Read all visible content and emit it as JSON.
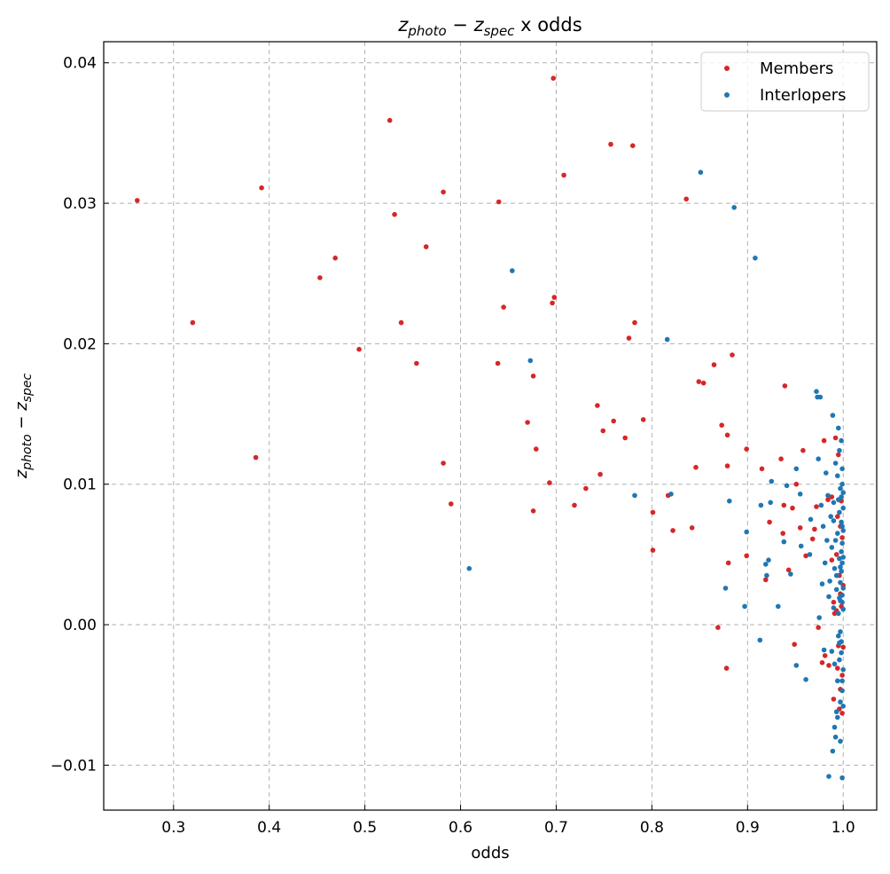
{
  "chart_data": {
    "type": "scatter",
    "title_parts": {
      "z": "z",
      "photo": "photo",
      "minus": " − ",
      "spec": "spec",
      "suffix": " x odds"
    },
    "xlabel": "odds",
    "ylabel_parts": {
      "z": "z",
      "photo": "photo",
      "minus": " − ",
      "spec": "spec"
    },
    "xlim": [
      0.227,
      1.035
    ],
    "ylim": [
      -0.0132,
      0.0415
    ],
    "xticks": [
      0.3,
      0.4,
      0.5,
      0.6,
      0.7,
      0.8,
      0.9,
      1.0
    ],
    "xtick_labels": [
      "0.3",
      "0.4",
      "0.5",
      "0.6",
      "0.7",
      "0.8",
      "0.9",
      "1.0"
    ],
    "yticks": [
      -0.01,
      0.0,
      0.01,
      0.02,
      0.03,
      0.04
    ],
    "ytick_labels": [
      "−0.01",
      "0.00",
      "0.01",
      "0.02",
      "0.03",
      "0.04"
    ],
    "grid": true,
    "legend_position": "top-right",
    "series": [
      {
        "name": "Members",
        "color": "#d62728",
        "points": [
          [
            0.262,
            0.0302
          ],
          [
            0.32,
            0.0215
          ],
          [
            0.386,
            0.0119
          ],
          [
            0.392,
            0.0311
          ],
          [
            0.453,
            0.0247
          ],
          [
            0.469,
            0.0261
          ],
          [
            0.494,
            0.0196
          ],
          [
            0.526,
            0.0359
          ],
          [
            0.531,
            0.0292
          ],
          [
            0.538,
            0.0215
          ],
          [
            0.554,
            0.0186
          ],
          [
            0.564,
            0.0269
          ],
          [
            0.582,
            0.0308
          ],
          [
            0.582,
            0.0115
          ],
          [
            0.59,
            0.0086
          ],
          [
            0.64,
            0.0301
          ],
          [
            0.639,
            0.0186
          ],
          [
            0.645,
            0.0226
          ],
          [
            0.67,
            0.0144
          ],
          [
            0.676,
            0.0177
          ],
          [
            0.676,
            0.0081
          ],
          [
            0.679,
            0.0125
          ],
          [
            0.693,
            0.0101
          ],
          [
            0.697,
            0.0389
          ],
          [
            0.696,
            0.0229
          ],
          [
            0.698,
            0.0233
          ],
          [
            0.708,
            0.032
          ],
          [
            0.719,
            0.0085
          ],
          [
            0.731,
            0.0097
          ],
          [
            0.743,
            0.0156
          ],
          [
            0.746,
            0.0107
          ],
          [
            0.749,
            0.0138
          ],
          [
            0.757,
            0.0342
          ],
          [
            0.76,
            0.0145
          ],
          [
            0.772,
            0.0133
          ],
          [
            0.776,
            0.0204
          ],
          [
            0.78,
            0.0341
          ],
          [
            0.782,
            0.0215
          ],
          [
            0.791,
            0.0146
          ],
          [
            0.801,
            0.008
          ],
          [
            0.801,
            0.0053
          ],
          [
            0.817,
            0.0092
          ],
          [
            0.822,
            0.0067
          ],
          [
            0.836,
            0.0303
          ],
          [
            0.842,
            0.0069
          ],
          [
            0.846,
            0.0112
          ],
          [
            0.849,
            0.0173
          ],
          [
            0.854,
            0.0172
          ],
          [
            0.865,
            0.0185
          ],
          [
            0.869,
            -0.0002
          ],
          [
            0.873,
            0.0142
          ],
          [
            0.878,
            -0.0031
          ],
          [
            0.879,
            0.0113
          ],
          [
            0.879,
            0.0135
          ],
          [
            0.88,
            0.0044
          ],
          [
            0.884,
            0.0192
          ],
          [
            0.899,
            0.0125
          ],
          [
            0.899,
            0.0049
          ],
          [
            0.915,
            0.0111
          ],
          [
            0.919,
            0.0032
          ],
          [
            0.923,
            0.0073
          ],
          [
            0.935,
            0.0118
          ],
          [
            0.937,
            0.0065
          ],
          [
            0.938,
            0.0085
          ],
          [
            0.939,
            0.017
          ],
          [
            0.943,
            0.0039
          ],
          [
            0.947,
            0.0083
          ],
          [
            0.949,
            -0.0014
          ],
          [
            0.951,
            0.01
          ],
          [
            0.955,
            0.0069
          ],
          [
            0.958,
            0.0124
          ],
          [
            0.961,
            0.0049
          ],
          [
            0.968,
            0.0061
          ],
          [
            0.97,
            0.0068
          ],
          [
            0.972,
            0.0084
          ],
          [
            0.974,
            -0.0002
          ],
          [
            0.978,
            -0.0027
          ],
          [
            0.98,
            0.0131
          ],
          [
            0.981,
            -0.0022
          ],
          [
            0.984,
            0.0089
          ],
          [
            0.985,
            -0.0029
          ],
          [
            0.988,
            0.0091
          ],
          [
            0.988,
            0.0046
          ],
          [
            0.99,
            0.0016
          ],
          [
            0.99,
            -0.0053
          ],
          [
            0.991,
            0.0008
          ],
          [
            0.992,
            0.0133
          ],
          [
            0.993,
            0.001
          ],
          [
            0.994,
            0.0077
          ],
          [
            0.994,
            -0.0031
          ],
          [
            0.995,
            0.0121
          ],
          [
            0.996,
            0.0035
          ],
          [
            0.996,
            -0.006
          ],
          [
            0.997,
            0.0022
          ],
          [
            0.997,
            -0.0046
          ],
          [
            0.998,
            0.0088
          ],
          [
            0.998,
            0.0013
          ],
          [
            0.999,
            -0.0036
          ],
          [
            0.999,
            0.0062
          ],
          [
            1.0,
            -0.0016
          ],
          [
            1.0,
            0.0028
          ],
          [
            0.993,
            0.005
          ],
          [
            0.995,
            -0.0015
          ],
          [
            0.997,
            0.007
          ],
          [
            0.999,
            -0.0063
          ]
        ]
      },
      {
        "name": "Interlopers",
        "color": "#1f77b4",
        "points": [
          [
            0.609,
            0.004
          ],
          [
            0.654,
            0.0252
          ],
          [
            0.673,
            0.0188
          ],
          [
            0.782,
            0.0092
          ],
          [
            0.816,
            0.0203
          ],
          [
            0.82,
            0.0093
          ],
          [
            0.851,
            0.0322
          ],
          [
            0.877,
            0.0026
          ],
          [
            0.881,
            0.0088
          ],
          [
            0.886,
            0.0297
          ],
          [
            0.897,
            0.0013
          ],
          [
            0.899,
            0.0066
          ],
          [
            0.908,
            0.0261
          ],
          [
            0.913,
            -0.0011
          ],
          [
            0.914,
            0.0085
          ],
          [
            0.919,
            0.0043
          ],
          [
            0.92,
            0.0035
          ],
          [
            0.922,
            0.0046
          ],
          [
            0.924,
            0.0087
          ],
          [
            0.925,
            0.0102
          ],
          [
            0.932,
            0.0013
          ],
          [
            0.938,
            0.0059
          ],
          [
            0.941,
            0.0099
          ],
          [
            0.945,
            0.0036
          ],
          [
            0.951,
            0.0111
          ],
          [
            0.951,
            -0.0029
          ],
          [
            0.955,
            0.0093
          ],
          [
            0.956,
            0.0056
          ],
          [
            0.961,
            -0.0039
          ],
          [
            0.965,
            0.005
          ],
          [
            0.966,
            0.0075
          ],
          [
            0.972,
            0.0166
          ],
          [
            0.973,
            0.0162
          ],
          [
            0.974,
            0.0118
          ],
          [
            0.975,
            0.0005
          ],
          [
            0.976,
            0.0162
          ],
          [
            0.977,
            0.0085
          ],
          [
            0.978,
            0.0029
          ],
          [
            0.979,
            0.007
          ],
          [
            0.98,
            -0.0018
          ],
          [
            0.981,
            0.0044
          ],
          [
            0.982,
            0.0108
          ],
          [
            0.983,
            0.006
          ],
          [
            0.984,
            0.0092
          ],
          [
            0.985,
            0.002
          ],
          [
            0.985,
            -0.0108
          ],
          [
            0.986,
            0.0031
          ],
          [
            0.987,
            0.0077
          ],
          [
            0.988,
            -0.0019
          ],
          [
            0.988,
            0.0055
          ],
          [
            0.989,
            0.0149
          ],
          [
            0.989,
            -0.009
          ],
          [
            0.99,
            0.0012
          ],
          [
            0.99,
            0.0087
          ],
          [
            0.991,
            -0.0073
          ],
          [
            0.991,
            0.004
          ],
          [
            0.992,
            -0.008
          ],
          [
            0.992,
            0.0115
          ],
          [
            0.993,
            0.0025
          ],
          [
            0.993,
            -0.0062
          ],
          [
            0.994,
            0.0106
          ],
          [
            0.994,
            -0.004
          ],
          [
            0.994,
            0.0065
          ],
          [
            0.995,
            -0.0008
          ],
          [
            0.995,
            0.014
          ],
          [
            0.995,
            0.0089
          ],
          [
            0.996,
            -0.0025
          ],
          [
            0.996,
            0.0047
          ],
          [
            0.996,
            0.0124
          ],
          [
            0.997,
            -0.0055
          ],
          [
            0.997,
            0.0097
          ],
          [
            0.997,
            0.0017
          ],
          [
            0.997,
            -0.0083
          ],
          [
            0.998,
            0.0073
          ],
          [
            0.998,
            0.0131
          ],
          [
            0.998,
            -0.0012
          ],
          [
            0.998,
            0.0038
          ],
          [
            0.999,
            0.01
          ],
          [
            0.999,
            -0.0047
          ],
          [
            0.999,
            0.0058
          ],
          [
            0.999,
            0.0021
          ],
          [
            0.999,
            -0.0109
          ],
          [
            1.0,
            0.0083
          ],
          [
            1.0,
            -0.0032
          ],
          [
            1.0,
            0.0011
          ],
          [
            1.0,
            0.0067
          ],
          [
            1.0,
            -0.0058
          ],
          [
            1.0,
            0.0094
          ],
          [
            0.999,
            0.0044
          ],
          [
            0.998,
            -0.002
          ],
          [
            0.997,
            0.003
          ],
          [
            0.996,
            0.008
          ],
          [
            0.995,
            0.0008
          ],
          [
            0.994,
            -0.0066
          ],
          [
            0.993,
            0.0035
          ],
          [
            0.992,
            0.006
          ],
          [
            0.991,
            -0.0028
          ],
          [
            0.99,
            0.0074
          ],
          [
            0.999,
            0.0111
          ],
          [
            0.998,
            0.0052
          ],
          [
            0.997,
            -0.0005
          ],
          [
            0.996,
            0.0019
          ],
          [
            0.999,
            -0.004
          ],
          [
            0.998,
            0.0091
          ],
          [
            1.0,
            0.0026
          ],
          [
            0.999,
            0.007
          ],
          [
            0.997,
            0.0041
          ],
          [
            0.996,
            -0.0013
          ],
          [
            0.999,
            0.0016
          ],
          [
            1.0,
            0.0048
          ]
        ]
      }
    ]
  }
}
